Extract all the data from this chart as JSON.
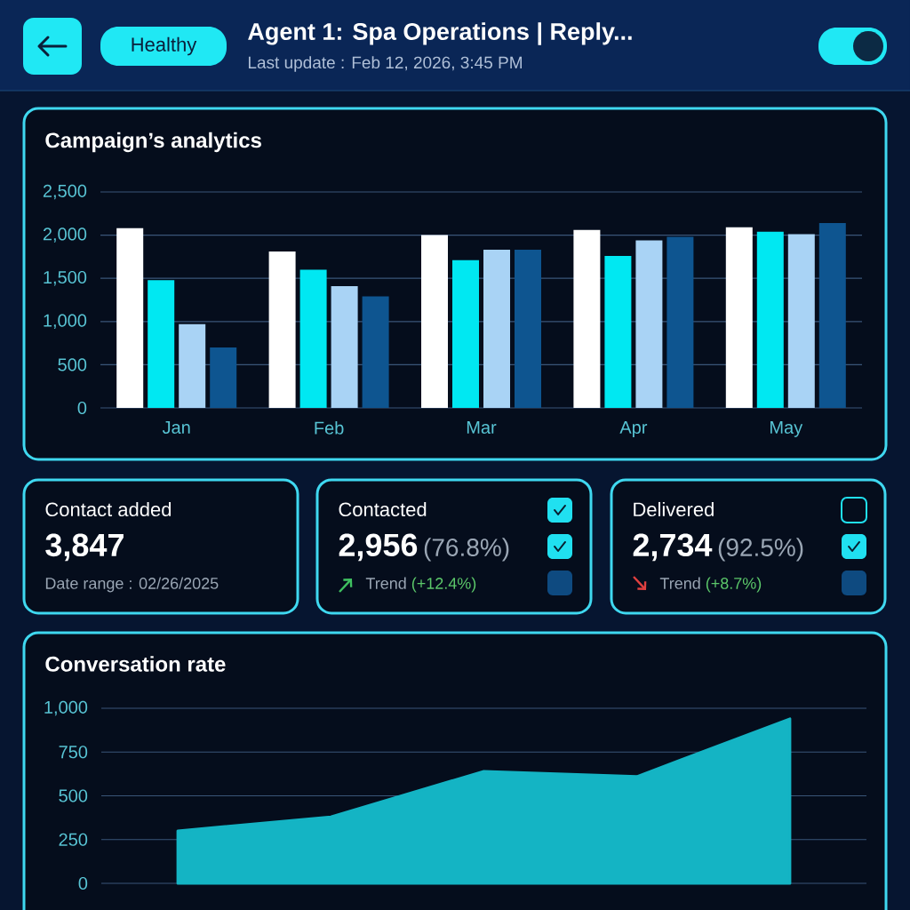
{
  "chart_data": [
    {
      "type": "other",
      "title": "Agent 1: Spa Operations | Reply...",
      "subtitle": "Last update : Feb 12, 2026, 3:45 PM",
      "annotations": [
        "Healthy"
      ]
    },
    {
      "type": "bar",
      "title": "Campaign’s analytics",
      "categories": [
        "Jan",
        "Feb",
        "Mar",
        "Apr",
        "May"
      ],
      "series": [
        {
          "color": "#ffffff",
          "values": [
            2080,
            1810,
            2000,
            2060,
            2090
          ]
        },
        {
          "color": "#00e8f2",
          "values": [
            1480,
            1600,
            1710,
            1760,
            2040
          ]
        },
        {
          "color": "#a9d3f5",
          "values": [
            970,
            1410,
            1830,
            1940,
            2010
          ]
        },
        {
          "color": "#0e5590",
          "values": [
            700,
            1290,
            1830,
            1980,
            2140
          ]
        }
      ],
      "ylim": [
        0,
        2500
      ],
      "yticks": [
        {
          "value": 0,
          "label": "0"
        },
        {
          "value": 500,
          "label": "500"
        },
        {
          "value": 1000,
          "label": "1,000"
        },
        {
          "value": 1500,
          "label": "1,500"
        },
        {
          "value": 2000,
          "label": "2,000"
        },
        {
          "value": 2500,
          "label": "2,500"
        }
      ],
      "grid": "y"
    },
    {
      "type": "other",
      "annotations": [
        "Contact added",
        "3,847",
        "Date range : 02/26/2025",
        "Contacted",
        "2,956",
        "(76.8%)",
        "Trend",
        "(+12.4%)",
        "Delivered",
        "2,734",
        "(92.5%)",
        "Trend",
        "(+8.7%)"
      ]
    },
    {
      "type": "area",
      "title": "Conversation rate",
      "categories": [
        null,
        null,
        null,
        null,
        null
      ],
      "series": [
        {
          "color": "#14b4c4",
          "values": [
            300,
            380,
            640,
            610,
            940
          ]
        }
      ],
      "ylim": [
        0,
        1000
      ],
      "yticks": [
        {
          "value": 0,
          "label": "0"
        },
        {
          "value": 250,
          "label": "250"
        },
        {
          "value": 500,
          "label": "500"
        },
        {
          "value": 750,
          "label": "750"
        },
        {
          "value": 1000,
          "label": "1,000"
        }
      ],
      "grid": "y"
    }
  ]
}
